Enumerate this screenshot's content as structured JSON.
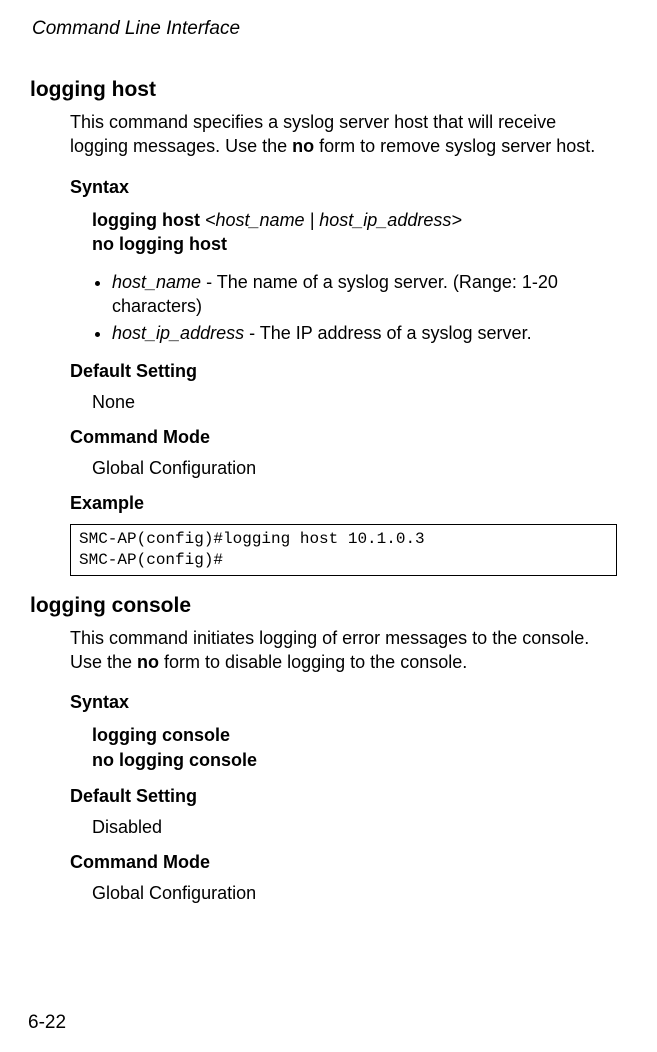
{
  "runningHead": "Command Line Interface",
  "pageNumber": "6-22",
  "section1": {
    "title": "logging host",
    "desc_pre": "This command specifies a syslog server host that will receive logging messages. Use the ",
    "desc_bold": "no",
    "desc_post": " form to remove syslog server host.",
    "syntaxLabel": "Syntax",
    "syntax_b1": "logging host",
    "syntax_i": "<host_name | host_ip_address>",
    "syntax_b2": "no logging host",
    "param1_i": "host_name",
    "param1_rest": " - The name of a syslog server. (Range: 1-20 characters)",
    "param2_i": "host_ip_address",
    "param2_rest": " - The IP address of a syslog server.",
    "defaultLabel": "Default Setting",
    "defaultValue": "None",
    "modeLabel": "Command Mode",
    "modeValue": "Global Configuration",
    "exampleLabel": "Example",
    "exampleText": "SMC-AP(config)#logging host 10.1.0.3\nSMC-AP(config)#"
  },
  "section2": {
    "title": "logging console",
    "desc_pre": "This command initiates logging of error messages to the console. Use the ",
    "desc_bold": "no",
    "desc_post": " form to disable logging to the console.",
    "syntaxLabel": "Syntax",
    "syntax_b1": "logging console",
    "syntax_b2": "no logging console",
    "defaultLabel": "Default Setting",
    "defaultValue": "Disabled",
    "modeLabel": "Command Mode",
    "modeValue": "Global Configuration"
  }
}
